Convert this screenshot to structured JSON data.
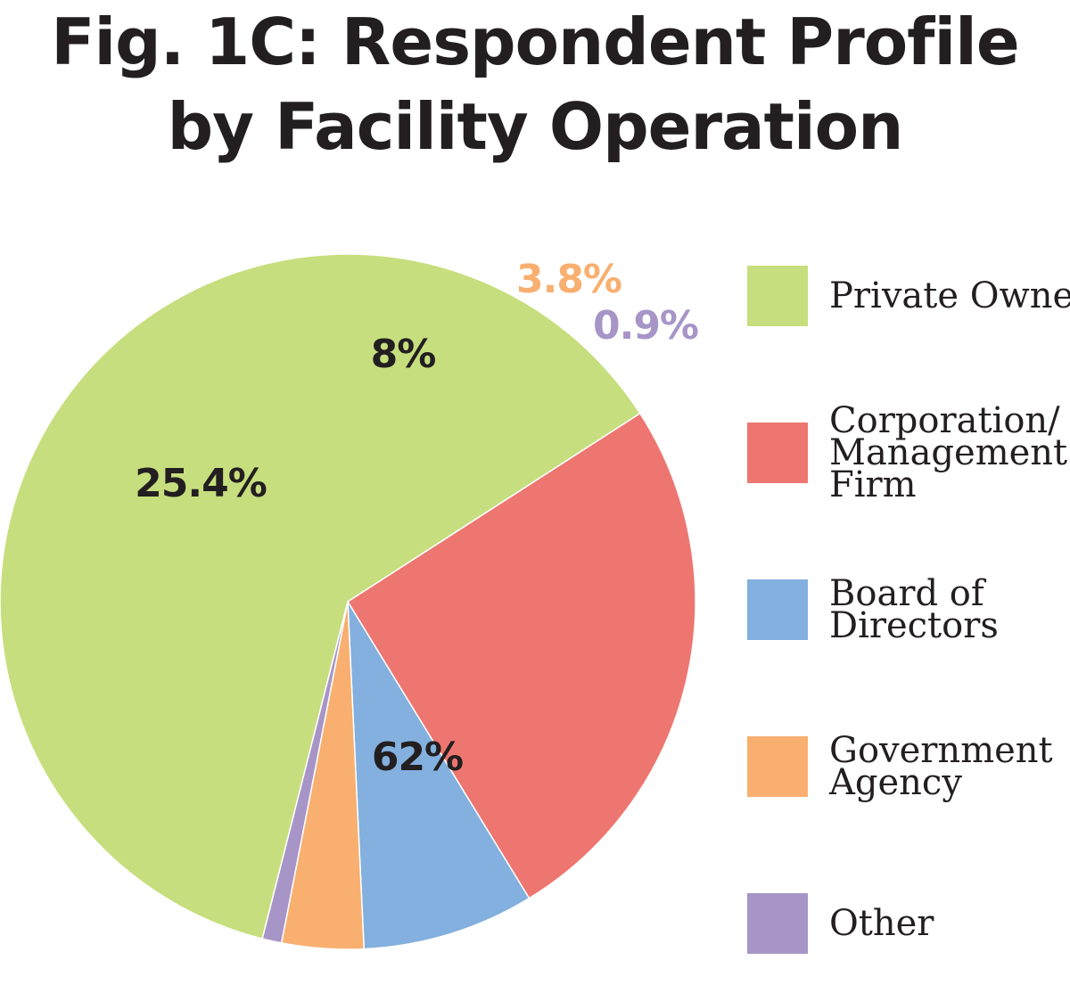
{
  "chart_data": {
    "type": "pie",
    "title_lines": [
      "Fig. 1C: Respondent Profile",
      "by Facility Operation"
    ],
    "legend_position": "right",
    "slices": [
      {
        "label": "Private Owner",
        "legend_lines": [
          "Private Owner"
        ],
        "value": 62,
        "display": "62%",
        "color": "#c7de7e",
        "label_color": "#231f20"
      },
      {
        "label": "Corporation/ Management Firm",
        "legend_lines": [
          "Corporation/",
          "Management",
          "Firm"
        ],
        "value": 25.4,
        "display": "25.4%",
        "color": "#ee7670",
        "label_color": "#231f20"
      },
      {
        "label": "Board of Directors",
        "legend_lines": [
          "Board of",
          "Directors"
        ],
        "value": 8,
        "display": "8%",
        "color": "#83b0de",
        "label_color": "#231f20"
      },
      {
        "label": "Government Agency",
        "legend_lines": [
          "Government",
          "Agency"
        ],
        "value": 3.8,
        "display": "3.8%",
        "color": "#f8af70",
        "label_color": "#f8af70"
      },
      {
        "label": "Other",
        "legend_lines": [
          "Other"
        ],
        "value": 0.9,
        "display": "0.9%",
        "color": "#a795c7",
        "label_color": "#a795c7"
      }
    ]
  }
}
